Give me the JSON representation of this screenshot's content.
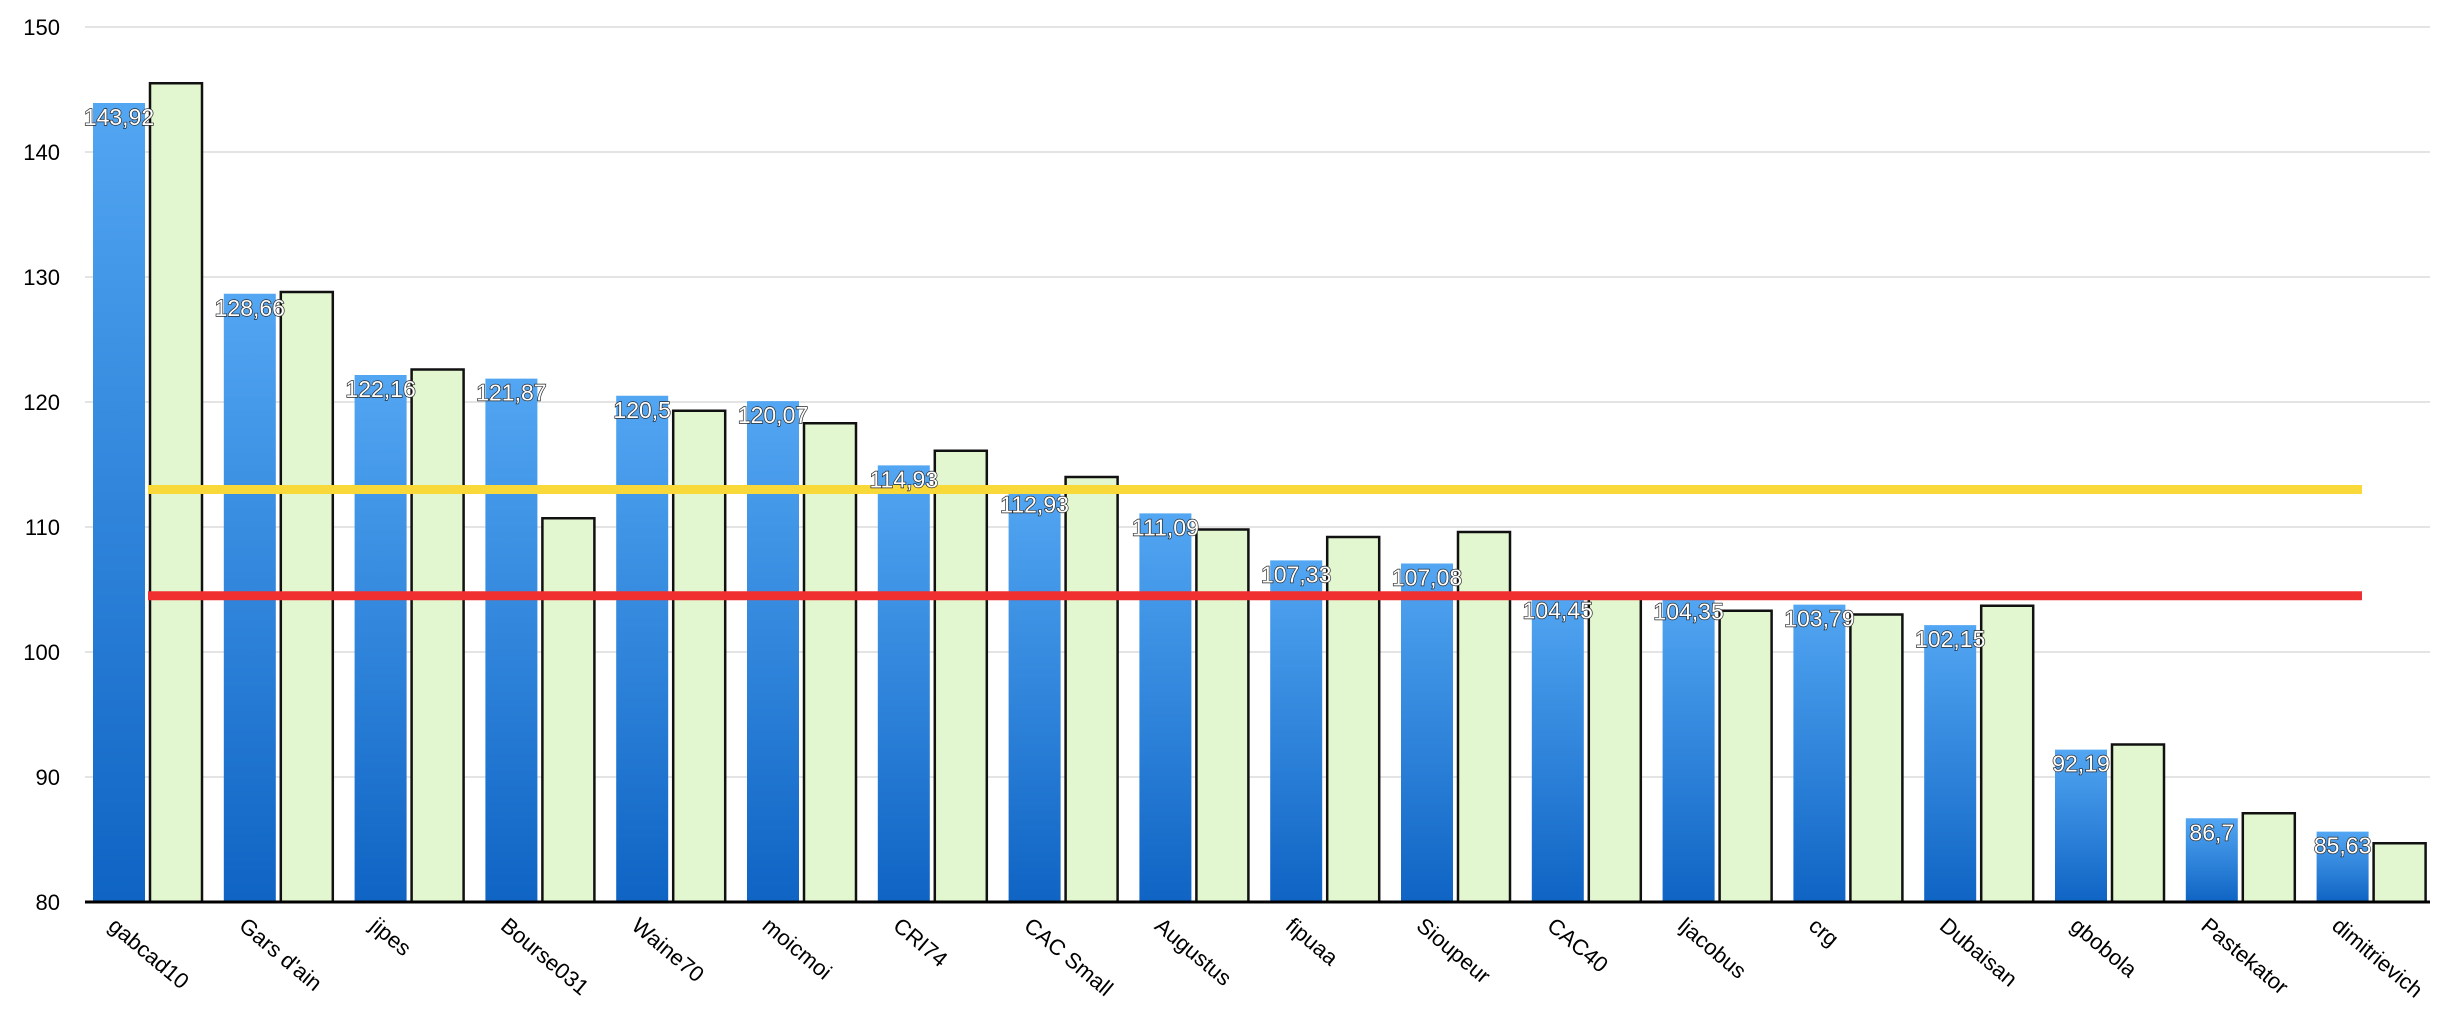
{
  "chart_data": {
    "type": "bar",
    "ylim": [
      80,
      150
    ],
    "yticks": [
      80,
      90,
      100,
      110,
      120,
      130,
      140,
      150
    ],
    "grid": true,
    "categories": [
      "gabcad10",
      "Gars d'ain",
      "jipes",
      "Bourse031",
      "Waine70",
      "moicmoi",
      "CRI74",
      "CAC Small",
      "Augustus",
      "fipuaa",
      "Sioupeur",
      "CAC40",
      "ljacobus",
      "crg",
      "Dubaisan",
      "gbobola",
      "Pastekator",
      "dimitrievich"
    ],
    "series": [
      {
        "values": [
          143.92,
          128.66,
          122.16,
          121.87,
          120.5,
          120.07,
          114.93,
          112.93,
          111.09,
          107.33,
          107.08,
          104.45,
          104.35,
          103.79,
          102.15,
          92.19,
          86.7,
          85.63
        ],
        "data_labels": [
          "143,92",
          "128,66",
          "122,16",
          "121,87",
          "120,5",
          "120,07",
          "114,93",
          "112,93",
          "111,09",
          "107,33",
          "107,08",
          "104,45",
          "104,35",
          "103,79",
          "102,15",
          "92,19",
          "86,7",
          "85,63"
        ],
        "color": "#2f86e3"
      },
      {
        "values": [
          145.5,
          128.8,
          122.6,
          110.7,
          119.3,
          118.3,
          116.1,
          114.0,
          109.8,
          109.2,
          109.6,
          104.4,
          103.3,
          103.0,
          103.7,
          92.6,
          87.1,
          84.7
        ],
        "color": "#e2f7d0"
      }
    ],
    "reference_lines": [
      {
        "value": 113.0,
        "color": "#f9d93a"
      },
      {
        "value": 104.5,
        "color": "#f03030"
      }
    ]
  }
}
